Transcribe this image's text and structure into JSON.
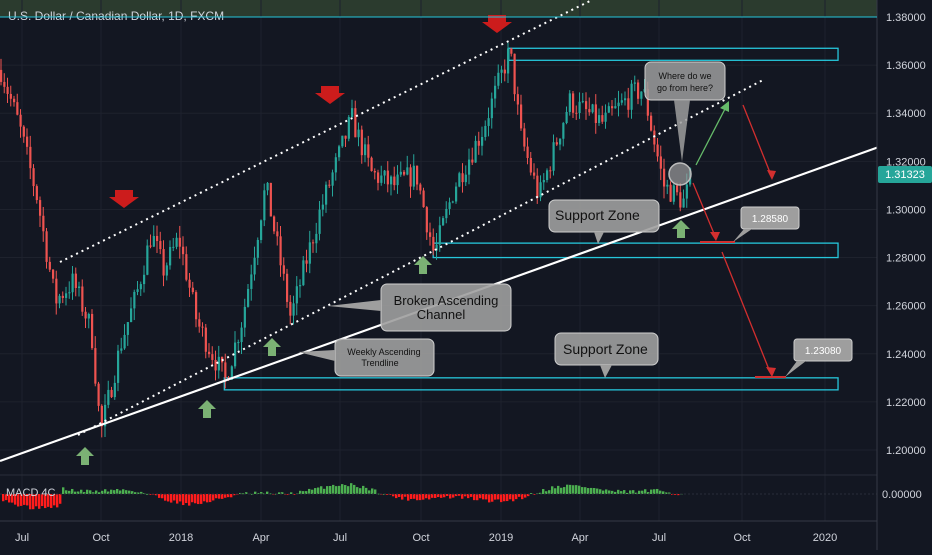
{
  "header": {
    "symbol_title": "U.S. Dollar / Canadian Dollar, 1D, FXCM"
  },
  "indicator": {
    "label": "MACD 4C",
    "value_label": "0.00000"
  },
  "colors": {
    "background": "#131722",
    "bull_candle": "#26a69a",
    "bear_candle": "#ef5350",
    "zone_stroke": "#26c6da",
    "top_band": "#2b3b2e",
    "trendline": "#ffffff",
    "red_arrow": "#cc1c1c",
    "green_arrow": "#7bb274",
    "projection_red": "#d32f2f",
    "projection_green": "#66bb6a",
    "current_price_bg": "#26a69a",
    "macd_green": "#4caf50",
    "macd_red": "#ff1c1c"
  },
  "annotations": {
    "callout_question_line1": "Where do we",
    "callout_question_line2": "go from here?",
    "callout_support_upper": "Support Zone",
    "callout_support_lower": "Support Zone",
    "callout_channel_line1": "Broken Ascending",
    "callout_channel_line2": "Channel",
    "callout_trendline_line1": "Weekly Ascending",
    "callout_trendline_line2": "Trendline",
    "target_label_1": "1.28580",
    "target_label_2": "1.23080"
  },
  "chart_data": {
    "type": "candlestick",
    "title": "U.S. Dollar / Canadian Dollar, 1D, FXCM",
    "ylim": [
      1.19,
      1.385
    ],
    "y_ticks": [
      "1.20000",
      "1.22000",
      "1.24000",
      "1.26000",
      "1.28000",
      "1.30000",
      "1.32000",
      "1.34000",
      "1.36000",
      "1.38000"
    ],
    "x_ticks": [
      "Jul",
      "Oct",
      "2018",
      "Apr",
      "Jul",
      "Oct",
      "2019",
      "Apr",
      "Jul",
      "Oct",
      "2020"
    ],
    "current_price": "1.31323",
    "price_path": [
      [
        "2017-05-15",
        1.358
      ],
      [
        "2017-06-05",
        1.335
      ],
      [
        "2017-06-26",
        1.305
      ],
      [
        "2017-07-17",
        1.262
      ],
      [
        "2017-08-07",
        1.27
      ],
      [
        "2017-08-28",
        1.25
      ],
      [
        "2017-09-08",
        1.207
      ],
      [
        "2017-10-02",
        1.245
      ],
      [
        "2017-10-20",
        1.265
      ],
      [
        "2017-11-06",
        1.29
      ],
      [
        "2017-11-20",
        1.275
      ],
      [
        "2017-12-08",
        1.288
      ],
      [
        "2017-12-29",
        1.253
      ],
      [
        "2018-01-31",
        1.229
      ],
      [
        "2018-02-20",
        1.255
      ],
      [
        "2018-03-19",
        1.31
      ],
      [
        "2018-04-17",
        1.255
      ],
      [
        "2018-05-20",
        1.298
      ],
      [
        "2018-06-27",
        1.338
      ],
      [
        "2018-07-20",
        1.315
      ],
      [
        "2018-08-15",
        1.31
      ],
      [
        "2018-09-10",
        1.315
      ],
      [
        "2018-10-01",
        1.281
      ],
      [
        "2018-10-25",
        1.31
      ],
      [
        "2018-11-25",
        1.332
      ],
      [
        "2018-12-28",
        1.366
      ],
      [
        "2019-01-10",
        1.33
      ],
      [
        "2019-01-31",
        1.305
      ],
      [
        "2019-03-07",
        1.345
      ],
      [
        "2019-04-15",
        1.336
      ],
      [
        "2019-05-20",
        1.348
      ],
      [
        "2019-06-01",
        1.35
      ],
      [
        "2019-06-25",
        1.31
      ],
      [
        "2019-07-19",
        1.303
      ],
      [
        "2019-07-26",
        1.3132
      ]
    ],
    "zones": [
      {
        "from": 1.362,
        "to": 1.367,
        "start": "2018-12-28",
        "end": "2020-01-15"
      },
      {
        "from": 1.28,
        "to": 1.286,
        "start": "2018-10-01",
        "end": "2020-01-15"
      },
      {
        "from": 1.225,
        "to": 1.23,
        "start": "2018-01-31",
        "end": "2020-01-15"
      }
    ],
    "targets": [
      1.2858,
      1.2308
    ],
    "macd": "histogram oscillating around 0.00000"
  }
}
